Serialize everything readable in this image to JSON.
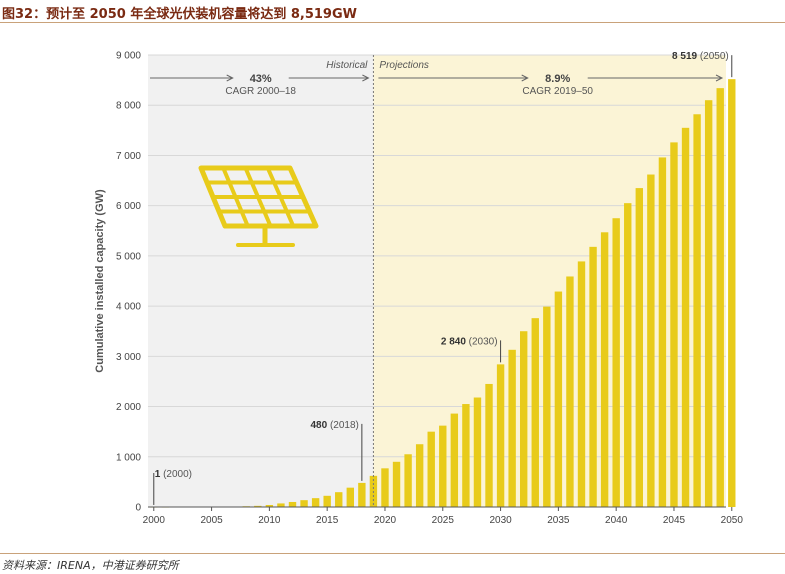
{
  "figure": {
    "title": "图32：预计至 2050 年全球光伏装机容量将达到 8,519GW",
    "source": "资料来源：IRENA，中港证券研究所"
  },
  "chart_data": {
    "type": "bar",
    "ylabel": "Cumulative installed capacity (GW)",
    "xlabel": "",
    "ylim": [
      0,
      9000
    ],
    "yticks": [
      0,
      1000,
      2000,
      3000,
      4000,
      5000,
      6000,
      7000,
      8000,
      9000
    ],
    "ytick_labels": [
      "0",
      "1 000",
      "2 000",
      "3 000",
      "4 000",
      "5 000",
      "6 000",
      "7 000",
      "8 000",
      "9 000"
    ],
    "xticks": [
      2000,
      2005,
      2010,
      2015,
      2020,
      2025,
      2030,
      2035,
      2040,
      2045,
      2050
    ],
    "xtick_labels": [
      "2000",
      "2005",
      "2010",
      "2015",
      "2020",
      "2025",
      "2030",
      "2035",
      "2040",
      "2045",
      "2050"
    ],
    "grid": true,
    "bar_color": "#e8cb1a",
    "historical_bg": "#f1f1f1",
    "projection_bg": "#fbf4d6",
    "categories": [
      2000,
      2001,
      2002,
      2003,
      2004,
      2005,
      2006,
      2007,
      2008,
      2009,
      2010,
      2011,
      2012,
      2013,
      2014,
      2015,
      2016,
      2017,
      2018,
      2019,
      2020,
      2021,
      2022,
      2023,
      2024,
      2025,
      2026,
      2027,
      2028,
      2029,
      2030,
      2031,
      2032,
      2033,
      2034,
      2035,
      2036,
      2037,
      2038,
      2039,
      2040,
      2041,
      2042,
      2043,
      2044,
      2045,
      2046,
      2047,
      2048,
      2049,
      2050
    ],
    "values": [
      1,
      1,
      2,
      3,
      4,
      5,
      7,
      9,
      15,
      23,
      40,
      71,
      100,
      136,
      176,
      223,
      295,
      385,
      480,
      620,
      770,
      900,
      1050,
      1250,
      1500,
      1620,
      1860,
      2050,
      2180,
      2450,
      2840,
      3130,
      3500,
      3760,
      3990,
      4290,
      4590,
      4890,
      5180,
      5470,
      5750,
      6050,
      6350,
      6620,
      6960,
      7260,
      7550,
      7820,
      8100,
      8340,
      8519
    ],
    "periods": [
      {
        "name": "Historical",
        "rate": "43%",
        "label": "CAGR 2000–18"
      },
      {
        "name": "Projections",
        "rate": "8.9%",
        "label": "CAGR 2019–50"
      }
    ],
    "annotations": [
      {
        "x": 2000,
        "bold": "1",
        "rest": " (2000)"
      },
      {
        "x": 2018,
        "bold": "480",
        "rest": " (2018)"
      },
      {
        "x": 2030,
        "bold": "2 840",
        "rest": " (2030)"
      },
      {
        "x": 2050,
        "bold": "8 519",
        "rest": " (2050)"
      }
    ]
  }
}
